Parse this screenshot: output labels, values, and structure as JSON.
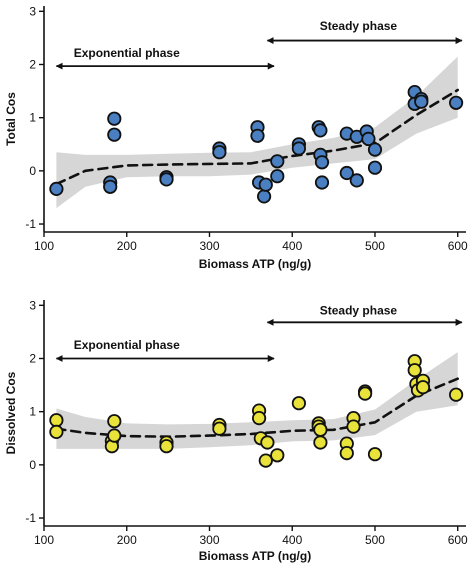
{
  "chart_data": [
    {
      "type": "scatter",
      "xlabel": "Biomass ATP (ng/g)",
      "ylabel": "Total Cos",
      "xlim": [
        100,
        610
      ],
      "ylim": [
        -1.15,
        3.1
      ],
      "xticks": [
        100,
        200,
        300,
        400,
        500,
        600
      ],
      "yticks": [
        -1,
        0,
        1,
        2,
        3
      ],
      "xtick_labels": [
        "100",
        "200",
        "300",
        "400",
        "500",
        "600"
      ],
      "ytick_labels": [
        "-1",
        "0",
        "1",
        "2",
        "3"
      ],
      "point_color": "#4a7fc1",
      "grid": false,
      "annotations": [
        {
          "text": "Exponential phase",
          "arrow_from": 115,
          "arrow_to": 378,
          "arrow_y": 1.97,
          "text_x": 200,
          "text_y": 2.22
        },
        {
          "text": "Steady phase",
          "arrow_from": 370,
          "arrow_to": 605,
          "arrow_y": 2.45,
          "text_x": 480,
          "text_y": 2.72
        }
      ],
      "points": [
        {
          "x": 115,
          "y": -0.34
        },
        {
          "x": 180,
          "y": -0.22
        },
        {
          "x": 180,
          "y": -0.3
        },
        {
          "x": 185,
          "y": 0.98
        },
        {
          "x": 185,
          "y": 0.68
        },
        {
          "x": 248,
          "y": -0.12
        },
        {
          "x": 248,
          "y": -0.16
        },
        {
          "x": 312,
          "y": 0.42
        },
        {
          "x": 312,
          "y": 0.35
        },
        {
          "x": 358,
          "y": 0.82
        },
        {
          "x": 358,
          "y": 0.66
        },
        {
          "x": 360,
          "y": -0.22
        },
        {
          "x": 366,
          "y": -0.48
        },
        {
          "x": 368,
          "y": -0.26
        },
        {
          "x": 382,
          "y": 0.18
        },
        {
          "x": 382,
          "y": -0.1
        },
        {
          "x": 408,
          "y": 0.5
        },
        {
          "x": 408,
          "y": 0.42
        },
        {
          "x": 432,
          "y": 0.82
        },
        {
          "x": 434,
          "y": 0.76
        },
        {
          "x": 434,
          "y": 0.3
        },
        {
          "x": 436,
          "y": 0.16
        },
        {
          "x": 436,
          "y": -0.22
        },
        {
          "x": 466,
          "y": 0.7
        },
        {
          "x": 466,
          "y": -0.04
        },
        {
          "x": 478,
          "y": 0.64
        },
        {
          "x": 478,
          "y": -0.18
        },
        {
          "x": 490,
          "y": 0.74
        },
        {
          "x": 492,
          "y": 0.6
        },
        {
          "x": 500,
          "y": 0.4
        },
        {
          "x": 500,
          "y": 0.06
        },
        {
          "x": 548,
          "y": 1.48
        },
        {
          "x": 548,
          "y": 1.26
        },
        {
          "x": 556,
          "y": 1.35
        },
        {
          "x": 556,
          "y": 1.3
        },
        {
          "x": 598,
          "y": 1.28
        }
      ],
      "trend": {
        "x": [
          115,
          150,
          200,
          250,
          300,
          350,
          400,
          450,
          500,
          550,
          600
        ],
        "y": [
          -0.25,
          0.0,
          0.1,
          0.12,
          0.13,
          0.14,
          0.28,
          0.38,
          0.52,
          1.05,
          1.52
        ],
        "band_lower": [
          -0.7,
          -0.3,
          -0.12,
          -0.1,
          -0.1,
          -0.07,
          0.06,
          0.14,
          0.22,
          0.7,
          1.0
        ],
        "band_upper": [
          0.35,
          0.3,
          0.3,
          0.32,
          0.34,
          0.35,
          0.5,
          0.62,
          0.82,
          1.4,
          2.15
        ]
      }
    },
    {
      "type": "scatter",
      "xlabel": "Biomass ATP (ng/g)",
      "ylabel": "Dissolved Cos",
      "xlim": [
        100,
        610
      ],
      "ylim": [
        -1.15,
        3.1
      ],
      "xticks": [
        100,
        200,
        300,
        400,
        500,
        600
      ],
      "yticks": [
        -1,
        0,
        1,
        2,
        3
      ],
      "xtick_labels": [
        "100",
        "200",
        "300",
        "400",
        "500",
        "600"
      ],
      "ytick_labels": [
        "-1",
        "0",
        "1",
        "2",
        "3"
      ],
      "point_color": "#e8e23a",
      "grid": false,
      "annotations": [
        {
          "text": "Exponential phase",
          "arrow_from": 115,
          "arrow_to": 378,
          "arrow_y": 2.0,
          "text_x": 200,
          "text_y": 2.25
        },
        {
          "text": "Steady phase",
          "arrow_from": 370,
          "arrow_to": 605,
          "arrow_y": 2.68,
          "text_x": 480,
          "text_y": 2.9
        }
      ],
      "points": [
        {
          "x": 115,
          "y": 0.84
        },
        {
          "x": 115,
          "y": 0.62
        },
        {
          "x": 182,
          "y": 0.45
        },
        {
          "x": 182,
          "y": 0.35
        },
        {
          "x": 185,
          "y": 0.82
        },
        {
          "x": 185,
          "y": 0.55
        },
        {
          "x": 248,
          "y": 0.42
        },
        {
          "x": 248,
          "y": 0.35
        },
        {
          "x": 312,
          "y": 0.75
        },
        {
          "x": 312,
          "y": 0.68
        },
        {
          "x": 360,
          "y": 1.02
        },
        {
          "x": 360,
          "y": 0.88
        },
        {
          "x": 362,
          "y": 0.5
        },
        {
          "x": 368,
          "y": 0.08
        },
        {
          "x": 370,
          "y": 0.42
        },
        {
          "x": 382,
          "y": 0.18
        },
        {
          "x": 408,
          "y": 1.16
        },
        {
          "x": 432,
          "y": 0.78
        },
        {
          "x": 432,
          "y": 0.72
        },
        {
          "x": 434,
          "y": 0.66
        },
        {
          "x": 434,
          "y": 0.42
        },
        {
          "x": 466,
          "y": 0.4
        },
        {
          "x": 466,
          "y": 0.22
        },
        {
          "x": 474,
          "y": 0.88
        },
        {
          "x": 474,
          "y": 0.72
        },
        {
          "x": 488,
          "y": 1.38
        },
        {
          "x": 488,
          "y": 1.34
        },
        {
          "x": 500,
          "y": 0.2
        },
        {
          "x": 548,
          "y": 1.95
        },
        {
          "x": 548,
          "y": 1.78
        },
        {
          "x": 550,
          "y": 1.52
        },
        {
          "x": 552,
          "y": 1.4
        },
        {
          "x": 558,
          "y": 1.58
        },
        {
          "x": 558,
          "y": 1.46
        },
        {
          "x": 598,
          "y": 1.32
        }
      ],
      "trend": {
        "x": [
          115,
          150,
          200,
          250,
          300,
          350,
          400,
          450,
          500,
          550,
          600
        ],
        "y": [
          0.68,
          0.6,
          0.54,
          0.53,
          0.55,
          0.58,
          0.64,
          0.66,
          0.8,
          1.3,
          1.62
        ],
        "band_lower": [
          0.3,
          0.3,
          0.3,
          0.3,
          0.33,
          0.37,
          0.44,
          0.46,
          0.56,
          1.0,
          1.12
        ],
        "band_upper": [
          1.06,
          0.9,
          0.78,
          0.76,
          0.77,
          0.8,
          0.84,
          0.86,
          1.04,
          1.6,
          2.12
        ]
      }
    }
  ]
}
